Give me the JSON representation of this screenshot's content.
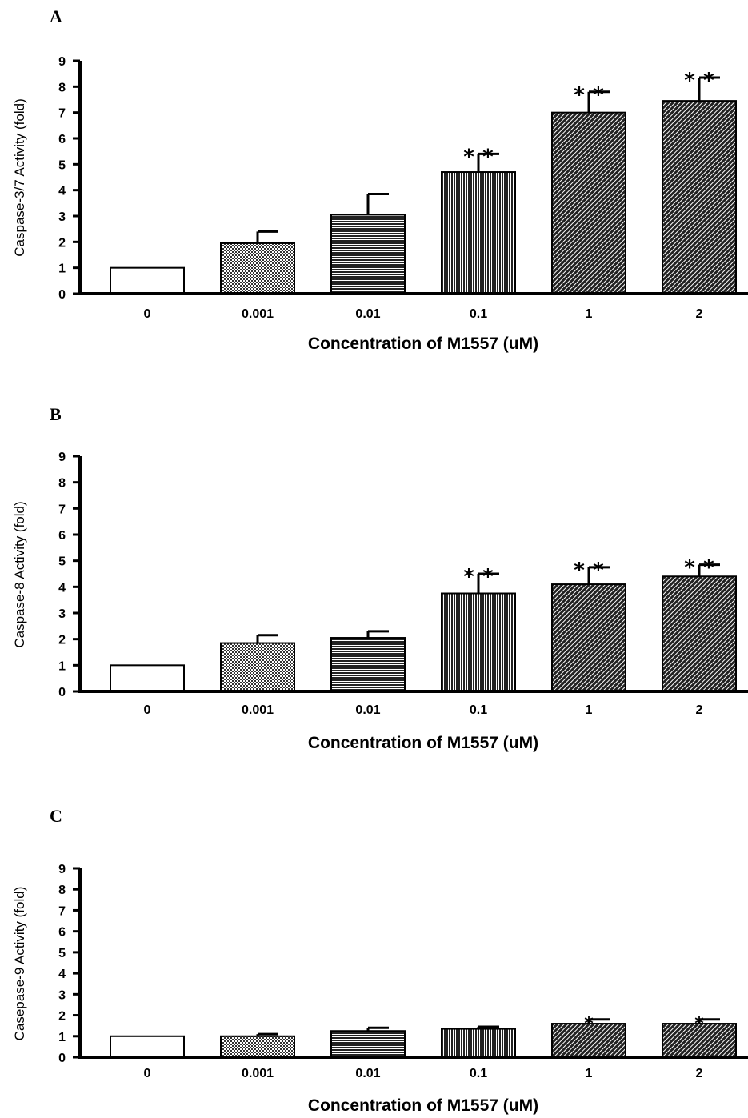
{
  "chart_data": [
    {
      "panel": "A",
      "type": "bar",
      "categories": [
        "0",
        "0.001",
        "0.01",
        "0.1",
        "1",
        "2"
      ],
      "values": [
        1.0,
        1.95,
        3.05,
        4.7,
        7.0,
        7.45
      ],
      "errors": [
        0,
        0.45,
        0.8,
        0.7,
        0.8,
        0.9
      ],
      "significance": [
        "",
        "",
        "",
        "* *",
        "* *",
        "* *"
      ],
      "yticks": [
        "0",
        "1",
        "2",
        "3",
        "4",
        "5",
        "6",
        "7",
        "8",
        "9"
      ],
      "xlabel": "Concentration of M1557 (uM)",
      "ylabel": "Caspase-3/7 Activity (fold)",
      "ylim": [
        0,
        9
      ],
      "patterns": [
        "white",
        "dots",
        "hlines",
        "vlines",
        "diagonal",
        "diagonal"
      ],
      "grid": false
    },
    {
      "panel": "B",
      "type": "bar",
      "categories": [
        "0",
        "0.001",
        "0.01",
        "0.1",
        "1",
        "2"
      ],
      "values": [
        1.0,
        1.85,
        2.05,
        3.75,
        4.1,
        4.4
      ],
      "errors": [
        0,
        0.3,
        0.25,
        0.75,
        0.65,
        0.45
      ],
      "significance": [
        "",
        "",
        "",
        "* *",
        "* *",
        "* *"
      ],
      "yticks": [
        "0",
        "1",
        "2",
        "3",
        "4",
        "5",
        "6",
        "7",
        "8",
        "9"
      ],
      "xlabel": "Concentration of M1557 (uM)",
      "ylabel": "Caspase-8 Activity (fold)",
      "ylim": [
        0,
        9
      ],
      "patterns": [
        "white",
        "dots",
        "hlines",
        "vlines",
        "diagonal",
        "diagonal"
      ],
      "grid": false
    },
    {
      "panel": "C",
      "type": "bar",
      "categories": [
        "0",
        "0.001",
        "0.01",
        "0.1",
        "1",
        "2"
      ],
      "values": [
        1.0,
        1.0,
        1.25,
        1.35,
        1.6,
        1.6
      ],
      "errors": [
        0,
        0.1,
        0.15,
        0.1,
        0.2,
        0.2
      ],
      "significance": [
        "",
        "",
        "",
        "",
        "*",
        "*"
      ],
      "yticks": [
        "0",
        "1",
        "2",
        "3",
        "4",
        "5",
        "6",
        "7",
        "8",
        "9"
      ],
      "xlabel": "Concentration of M1557 (uM)",
      "ylabel": "Casepase-9 Activity (fold)",
      "ylim": [
        0,
        9
      ],
      "patterns": [
        "white",
        "dots",
        "hlines",
        "vlines",
        "diagonal",
        "diagonal"
      ],
      "grid": false
    }
  ]
}
